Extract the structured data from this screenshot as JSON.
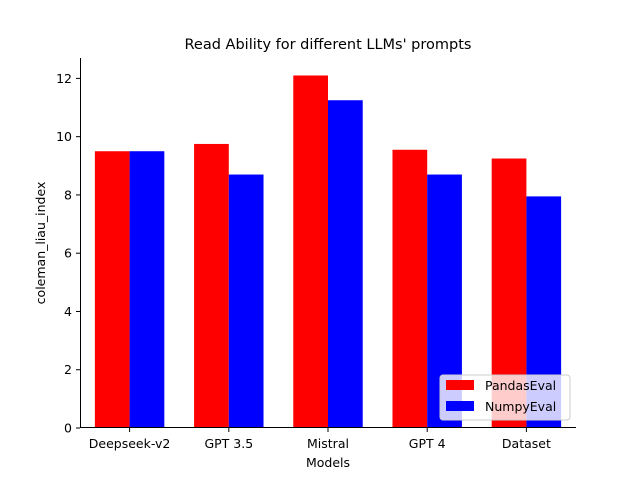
{
  "chart_data": {
    "type": "bar",
    "title": "Read Ability for different LLMs' prompts",
    "xlabel": "Models",
    "ylabel": "coleman_liau_index",
    "categories": [
      "Deepseek-v2",
      "GPT 3.5",
      "Mistral",
      "GPT 4",
      "Dataset"
    ],
    "series": [
      {
        "name": "PandasEval",
        "color": "#ff0000",
        "values": [
          9.5,
          9.75,
          12.1,
          9.55,
          9.25
        ]
      },
      {
        "name": "NumpyEval",
        "color": "#0000ff",
        "values": [
          9.5,
          8.7,
          11.25,
          8.7,
          7.95
        ]
      }
    ],
    "ylim": [
      0,
      12.7
    ],
    "yticks": [
      0,
      2,
      4,
      6,
      8,
      10,
      12
    ],
    "grid": false,
    "legend_position": "bottom-right"
  }
}
